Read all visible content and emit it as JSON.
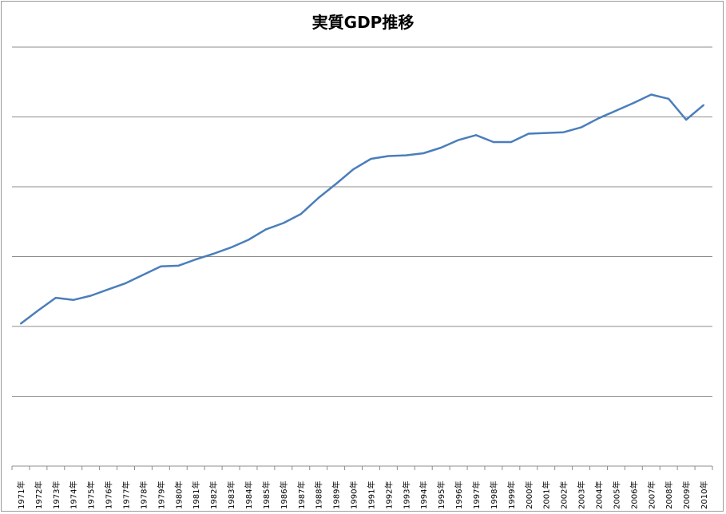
{
  "chart_data": {
    "type": "line",
    "title": "実質GDP推移",
    "categories": [
      "1971年",
      "1972年",
      "1973年",
      "1974年",
      "1975年",
      "1976年",
      "1977年",
      "1978年",
      "1979年",
      "1980年",
      "1981年",
      "1982年",
      "1983年",
      "1984年",
      "1985年",
      "1986年",
      "1987年",
      "1988年",
      "1989年",
      "1990年",
      "1991年",
      "1992年",
      "1993年",
      "1994年",
      "1995年",
      "1996年",
      "1997年",
      "1998年",
      "1999年",
      "2000年",
      "2001年",
      "2002年",
      "2003年",
      "2004年",
      "2005年",
      "2006年",
      "2007年",
      "2008年",
      "2009年",
      "2010年"
    ],
    "series": [
      {
        "color": "#4a7ebb",
        "values": [
          2.04,
          2.23,
          2.41,
          2.38,
          2.44,
          2.53,
          2.62,
          2.74,
          2.86,
          2.87,
          2.96,
          3.04,
          3.13,
          3.24,
          3.39,
          3.48,
          3.61,
          3.84,
          4.04,
          4.25,
          4.4,
          4.44,
          4.45,
          4.48,
          4.56,
          4.67,
          4.74,
          4.64,
          4.64,
          4.76,
          4.77,
          4.78,
          4.85,
          4.98,
          5.09,
          5.2,
          5.32,
          5.26,
          4.96,
          5.17
        ]
      }
    ],
    "ylim": [
      0,
      6
    ],
    "grid": true,
    "legend": "none"
  }
}
